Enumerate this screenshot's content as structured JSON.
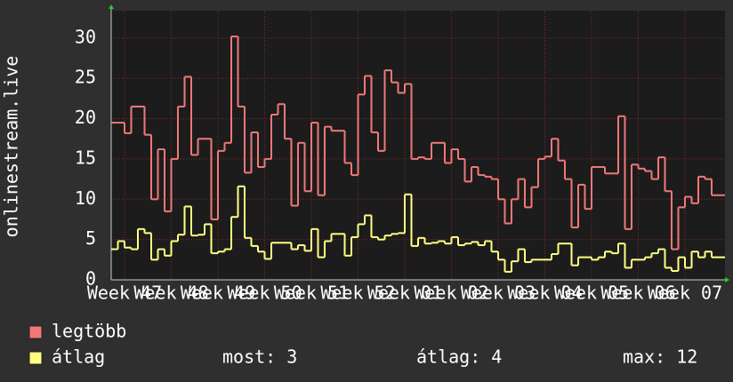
{
  "chart_data": {
    "type": "step-line",
    "ylabel": "onlinestream.live",
    "xlim": [
      0,
      92
    ],
    "xticks": [
      {
        "value": 2,
        "label": "Week 47"
      },
      {
        "value": 9,
        "label": "Week 48"
      },
      {
        "value": 16,
        "label": "Week 49"
      },
      {
        "value": 23,
        "label": "Week 50"
      },
      {
        "value": 30,
        "label": "Week 51"
      },
      {
        "value": 37,
        "label": "Week 52"
      },
      {
        "value": 44,
        "label": "Week 01"
      },
      {
        "value": 51,
        "label": "Week 02"
      },
      {
        "value": 58,
        "label": "Week 03"
      },
      {
        "value": 65,
        "label": "Week 04"
      },
      {
        "value": 72,
        "label": "Week 05"
      },
      {
        "value": 79,
        "label": "Week 06"
      },
      {
        "value": 86,
        "label": "Week 07"
      }
    ],
    "ylim": [
      0,
      33.4
    ],
    "yticks": [
      0,
      5,
      10,
      15,
      20,
      25,
      30
    ],
    "grid": true,
    "series": [
      {
        "name": "legtöbb",
        "color": "#f07878",
        "values": [
          19.5,
          19.5,
          18.2,
          21.5,
          21.5,
          18,
          10,
          16.2,
          8.5,
          15,
          21.5,
          25.2,
          15.5,
          17.5,
          17.5,
          7.5,
          16,
          17,
          30.2,
          21.5,
          13.3,
          18.3,
          14,
          15,
          20.5,
          21.8,
          17.5,
          9.2,
          17,
          11,
          19.5,
          10.5,
          19,
          18.5,
          18.5,
          14.5,
          13,
          23,
          25.3,
          18.3,
          16,
          26,
          24.5,
          23.2,
          24.3,
          15,
          15.2,
          15,
          17,
          17,
          14.5,
          16.2,
          15,
          12.2,
          14,
          13,
          12.8,
          12.5,
          10,
          7,
          10,
          12.5,
          9,
          11.5,
          15,
          15.3,
          17.5,
          14.8,
          12.5,
          6.5,
          11.8,
          8.8,
          14,
          14,
          13.2,
          13.2,
          20.3,
          6.3,
          14.3,
          13.8,
          13.5,
          12.5,
          15.2,
          11,
          3.8,
          9,
          10.3,
          9.5,
          12.8,
          12.5,
          10.5,
          10.5
        ]
      },
      {
        "name": "átlag",
        "color": "#ffff80",
        "values": [
          3.8,
          4.8,
          4,
          3.8,
          6.3,
          5.8,
          2.5,
          3.8,
          3,
          4.8,
          5.6,
          9.1,
          5.5,
          5.6,
          6.9,
          3.3,
          3.5,
          3.8,
          7.8,
          11.6,
          5.2,
          4.2,
          3.5,
          2.6,
          4.6,
          4.6,
          4.6,
          3.8,
          4.3,
          3.6,
          6.3,
          2.8,
          4.8,
          5.7,
          5.7,
          3,
          5.3,
          6.9,
          8,
          5.3,
          5,
          5.5,
          5.7,
          5.8,
          10.6,
          4.2,
          5.2,
          4.5,
          4.6,
          4.8,
          4.5,
          5.3,
          4.3,
          4.5,
          4.7,
          4.3,
          4.8,
          3.5,
          2.5,
          1,
          2.3,
          3.8,
          2.2,
          2.5,
          2.5,
          2.5,
          3.2,
          4.5,
          4.5,
          1.8,
          2.8,
          2.8,
          2.5,
          2.8,
          3.5,
          3.3,
          4.5,
          1.5,
          2.5,
          2.5,
          2.8,
          3.3,
          3.8,
          1.5,
          1.1,
          2.8,
          1.5,
          3.5,
          2.8,
          3.5,
          2.8,
          2.8
        ]
      }
    ],
    "stats": [
      "most: 3",
      "átlag: 4",
      "max: 12"
    ]
  }
}
